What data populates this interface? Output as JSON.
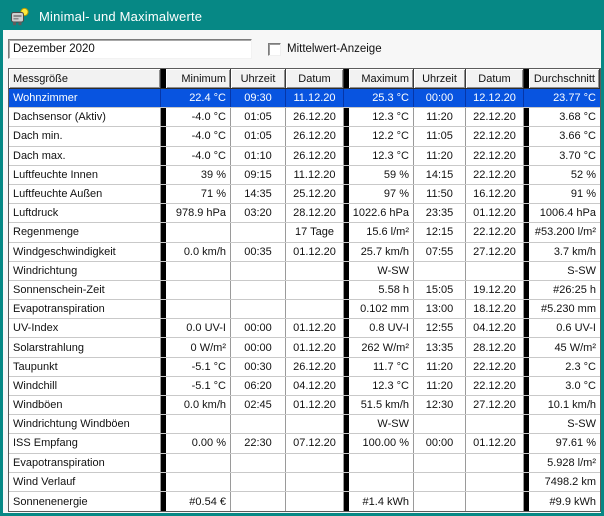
{
  "window": {
    "title": "Minimal- und Maximalwerte"
  },
  "controls": {
    "period": {
      "value": "Dezember 2020"
    },
    "mittelwert": {
      "label": "Mittelwert-Anzeige",
      "checked": false
    }
  },
  "colors": {
    "titlebar": "#068885",
    "selection": "#0854e0",
    "selection_text": "#ffffff",
    "group_bar": "#000000"
  },
  "table": {
    "columns": [
      "Messgröße",
      "Minimum",
      "Uhrzeit",
      "Datum",
      "Maximum",
      "Uhrzeit",
      "Datum",
      "Durchschnitt"
    ],
    "rows": [
      {
        "selected": true,
        "cells": [
          "Wohnzimmer",
          "22.4 °C",
          "09:30",
          "11.12.20",
          "25.3 °C",
          "00:00",
          "12.12.20",
          "23.77 °C"
        ]
      },
      {
        "selected": false,
        "cells": [
          "Dachsensor (Aktiv)",
          "-4.0 °C",
          "01:05",
          "26.12.20",
          "12.3 °C",
          "11:20",
          "22.12.20",
          "3.68 °C"
        ]
      },
      {
        "selected": false,
        "cells": [
          "Dach min.",
          "-4.0 °C",
          "01:05",
          "26.12.20",
          "12.2 °C",
          "11:05",
          "22.12.20",
          "3.66 °C"
        ]
      },
      {
        "selected": false,
        "cells": [
          "Dach max.",
          "-4.0 °C",
          "01:10",
          "26.12.20",
          "12.3 °C",
          "11:20",
          "22.12.20",
          "3.70 °C"
        ]
      },
      {
        "selected": false,
        "cells": [
          "Luftfeuchte Innen",
          "39 %",
          "09:15",
          "11.12.20",
          "59 %",
          "14:15",
          "22.12.20",
          "52 %"
        ]
      },
      {
        "selected": false,
        "cells": [
          "Luftfeuchte Außen",
          "71 %",
          "14:35",
          "25.12.20",
          "97 %",
          "11:50",
          "16.12.20",
          "91 %"
        ]
      },
      {
        "selected": false,
        "cells": [
          "Luftdruck",
          "978.9 hPa",
          "03:20",
          "28.12.20",
          "1022.6 hPa",
          "23:35",
          "01.12.20",
          "1006.4 hPa"
        ]
      },
      {
        "selected": false,
        "cells": [
          "Regenmenge",
          "",
          "",
          "17 Tage",
          "15.6 l/m²",
          "12:15",
          "22.12.20",
          "#53.200 l/m²"
        ]
      },
      {
        "selected": false,
        "cells": [
          "Windgeschwindigkeit",
          "0.0 km/h",
          "00:35",
          "01.12.20",
          "25.7 km/h",
          "07:55",
          "27.12.20",
          "3.7 km/h"
        ]
      },
      {
        "selected": false,
        "cells": [
          "Windrichtung",
          "",
          "",
          "",
          "W-SW",
          "",
          "",
          "S-SW"
        ]
      },
      {
        "selected": false,
        "cells": [
          "Sonnenschein-Zeit",
          "",
          "",
          "",
          "5.58 h",
          "15:05",
          "19.12.20",
          "#26:25 h"
        ]
      },
      {
        "selected": false,
        "cells": [
          "Evapotranspiration",
          "",
          "",
          "",
          "0.102 mm",
          "13:00",
          "18.12.20",
          "#5.230 mm"
        ]
      },
      {
        "selected": false,
        "cells": [
          "UV-Index",
          "0.0 UV-I",
          "00:00",
          "01.12.20",
          "0.8 UV-I",
          "12:55",
          "04.12.20",
          "0.6 UV-I"
        ]
      },
      {
        "selected": false,
        "cells": [
          "Solarstrahlung",
          "0 W/m²",
          "00:00",
          "01.12.20",
          "262 W/m²",
          "13:35",
          "28.12.20",
          "45 W/m²"
        ]
      },
      {
        "selected": false,
        "cells": [
          "Taupunkt",
          "-5.1 °C",
          "00:30",
          "26.12.20",
          "11.7 °C",
          "11:20",
          "22.12.20",
          "2.3 °C"
        ]
      },
      {
        "selected": false,
        "cells": [
          "Windchill",
          "-5.1 °C",
          "06:20",
          "04.12.20",
          "12.3 °C",
          "11:20",
          "22.12.20",
          "3.0 °C"
        ]
      },
      {
        "selected": false,
        "cells": [
          "Windböen",
          "0.0 km/h",
          "02:45",
          "01.12.20",
          "51.5 km/h",
          "12:30",
          "27.12.20",
          "10.1 km/h"
        ]
      },
      {
        "selected": false,
        "cells": [
          "Windrichtung Windböen",
          "",
          "",
          "",
          "W-SW",
          "",
          "",
          "S-SW"
        ]
      },
      {
        "selected": false,
        "cells": [
          "ISS Empfang",
          "0.00 %",
          "22:30",
          "07.12.20",
          "100.00 %",
          "00:00",
          "01.12.20",
          "97.61 %"
        ]
      },
      {
        "selected": false,
        "cells": [
          "Evapotranspiration",
          "",
          "",
          "",
          "",
          "",
          "",
          "5.928 l/m²"
        ]
      },
      {
        "selected": false,
        "cells": [
          "Wind Verlauf",
          "",
          "",
          "",
          "",
          "",
          "",
          "7498.2 km"
        ]
      },
      {
        "selected": false,
        "cells": [
          "Sonnenenergie",
          "#0.54 €",
          "",
          "",
          "#1.4 kWh",
          "",
          "",
          "#9.9 kWh"
        ]
      }
    ]
  }
}
